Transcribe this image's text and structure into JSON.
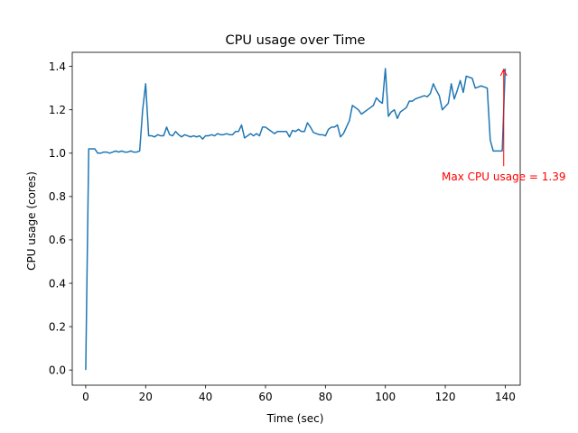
{
  "chart_data": {
    "type": "line",
    "title": "CPU usage over Time",
    "xlabel": "Time (sec)",
    "ylabel": "CPU usage (cores)",
    "xlim": [
      -4.5,
      145
    ],
    "ylim": [
      -0.07,
      1.465
    ],
    "x_ticks": [
      0,
      20,
      40,
      60,
      80,
      100,
      120,
      140
    ],
    "y_ticks": [
      0.0,
      0.2,
      0.4,
      0.6,
      0.8,
      1.0,
      1.2,
      1.4
    ],
    "x_tick_labels": [
      "0",
      "20",
      "40",
      "60",
      "80",
      "100",
      "120",
      "140"
    ],
    "y_tick_labels": [
      "0.0",
      "0.2",
      "0.4",
      "0.6",
      "0.8",
      "1.0",
      "1.2",
      "1.4"
    ],
    "grid": false,
    "series": [
      {
        "color": "#1f77b4",
        "x": [
          0,
          1,
          2,
          3,
          4,
          5,
          6,
          7,
          8,
          9,
          10,
          11,
          12,
          13,
          14,
          15,
          16,
          17,
          18,
          19,
          20,
          21,
          22,
          23,
          24,
          25,
          26,
          27,
          28,
          29,
          30,
          31,
          32,
          33,
          34,
          35,
          36,
          37,
          38,
          39,
          40,
          41,
          42,
          43,
          44,
          45,
          46,
          47,
          48,
          49,
          50,
          51,
          52,
          53,
          54,
          55,
          56,
          57,
          58,
          59,
          60,
          61,
          62,
          63,
          64,
          65,
          66,
          67,
          68,
          69,
          70,
          71,
          72,
          73,
          74,
          75,
          76,
          77,
          78,
          79,
          80,
          81,
          82,
          83,
          84,
          85,
          86,
          87,
          88,
          89,
          90,
          91,
          92,
          93,
          94,
          95,
          96,
          97,
          98,
          99,
          100,
          101,
          102,
          103,
          104,
          105,
          106,
          107,
          108,
          109,
          110,
          111,
          112,
          113,
          114,
          115,
          116,
          117,
          118,
          119,
          120,
          121,
          122,
          123,
          124,
          125,
          126,
          127,
          128,
          129,
          130,
          131,
          132,
          133,
          134,
          135,
          136,
          137,
          138,
          139,
          140
        ],
        "y": [
          0.0,
          1.02,
          1.02,
          1.02,
          1.0,
          1.0,
          1.005,
          1.005,
          1.0,
          1.005,
          1.01,
          1.005,
          1.01,
          1.005,
          1.005,
          1.01,
          1.005,
          1.005,
          1.01,
          1.2,
          1.32,
          1.08,
          1.08,
          1.075,
          1.085,
          1.08,
          1.08,
          1.12,
          1.085,
          1.08,
          1.1,
          1.085,
          1.075,
          1.085,
          1.08,
          1.075,
          1.08,
          1.075,
          1.08,
          1.065,
          1.08,
          1.08,
          1.085,
          1.08,
          1.09,
          1.085,
          1.085,
          1.09,
          1.085,
          1.085,
          1.1,
          1.1,
          1.13,
          1.07,
          1.08,
          1.09,
          1.08,
          1.09,
          1.08,
          1.12,
          1.12,
          1.11,
          1.1,
          1.09,
          1.1,
          1.1,
          1.1,
          1.1,
          1.075,
          1.105,
          1.1,
          1.11,
          1.1,
          1.1,
          1.14,
          1.12,
          1.095,
          1.09,
          1.085,
          1.085,
          1.08,
          1.11,
          1.12,
          1.12,
          1.13,
          1.075,
          1.09,
          1.12,
          1.15,
          1.22,
          1.21,
          1.2,
          1.18,
          1.19,
          1.2,
          1.21,
          1.22,
          1.255,
          1.24,
          1.23,
          1.39,
          1.17,
          1.19,
          1.2,
          1.16,
          1.19,
          1.2,
          1.21,
          1.24,
          1.24,
          1.25,
          1.255,
          1.26,
          1.265,
          1.26,
          1.275,
          1.32,
          1.29,
          1.265,
          1.2,
          1.215,
          1.23,
          1.32,
          1.25,
          1.29,
          1.335,
          1.28,
          1.355,
          1.35,
          1.345,
          1.3,
          1.305,
          1.31,
          1.305,
          1.3,
          1.06,
          1.01,
          1.01,
          1.01,
          1.01,
          1.39
        ]
      }
    ],
    "annotation": {
      "text": "Max CPU usage = 1.39",
      "point": [
        139.5,
        1.39
      ],
      "text_position": [
        139.5,
        0.89
      ],
      "color": "#ff0000"
    }
  }
}
